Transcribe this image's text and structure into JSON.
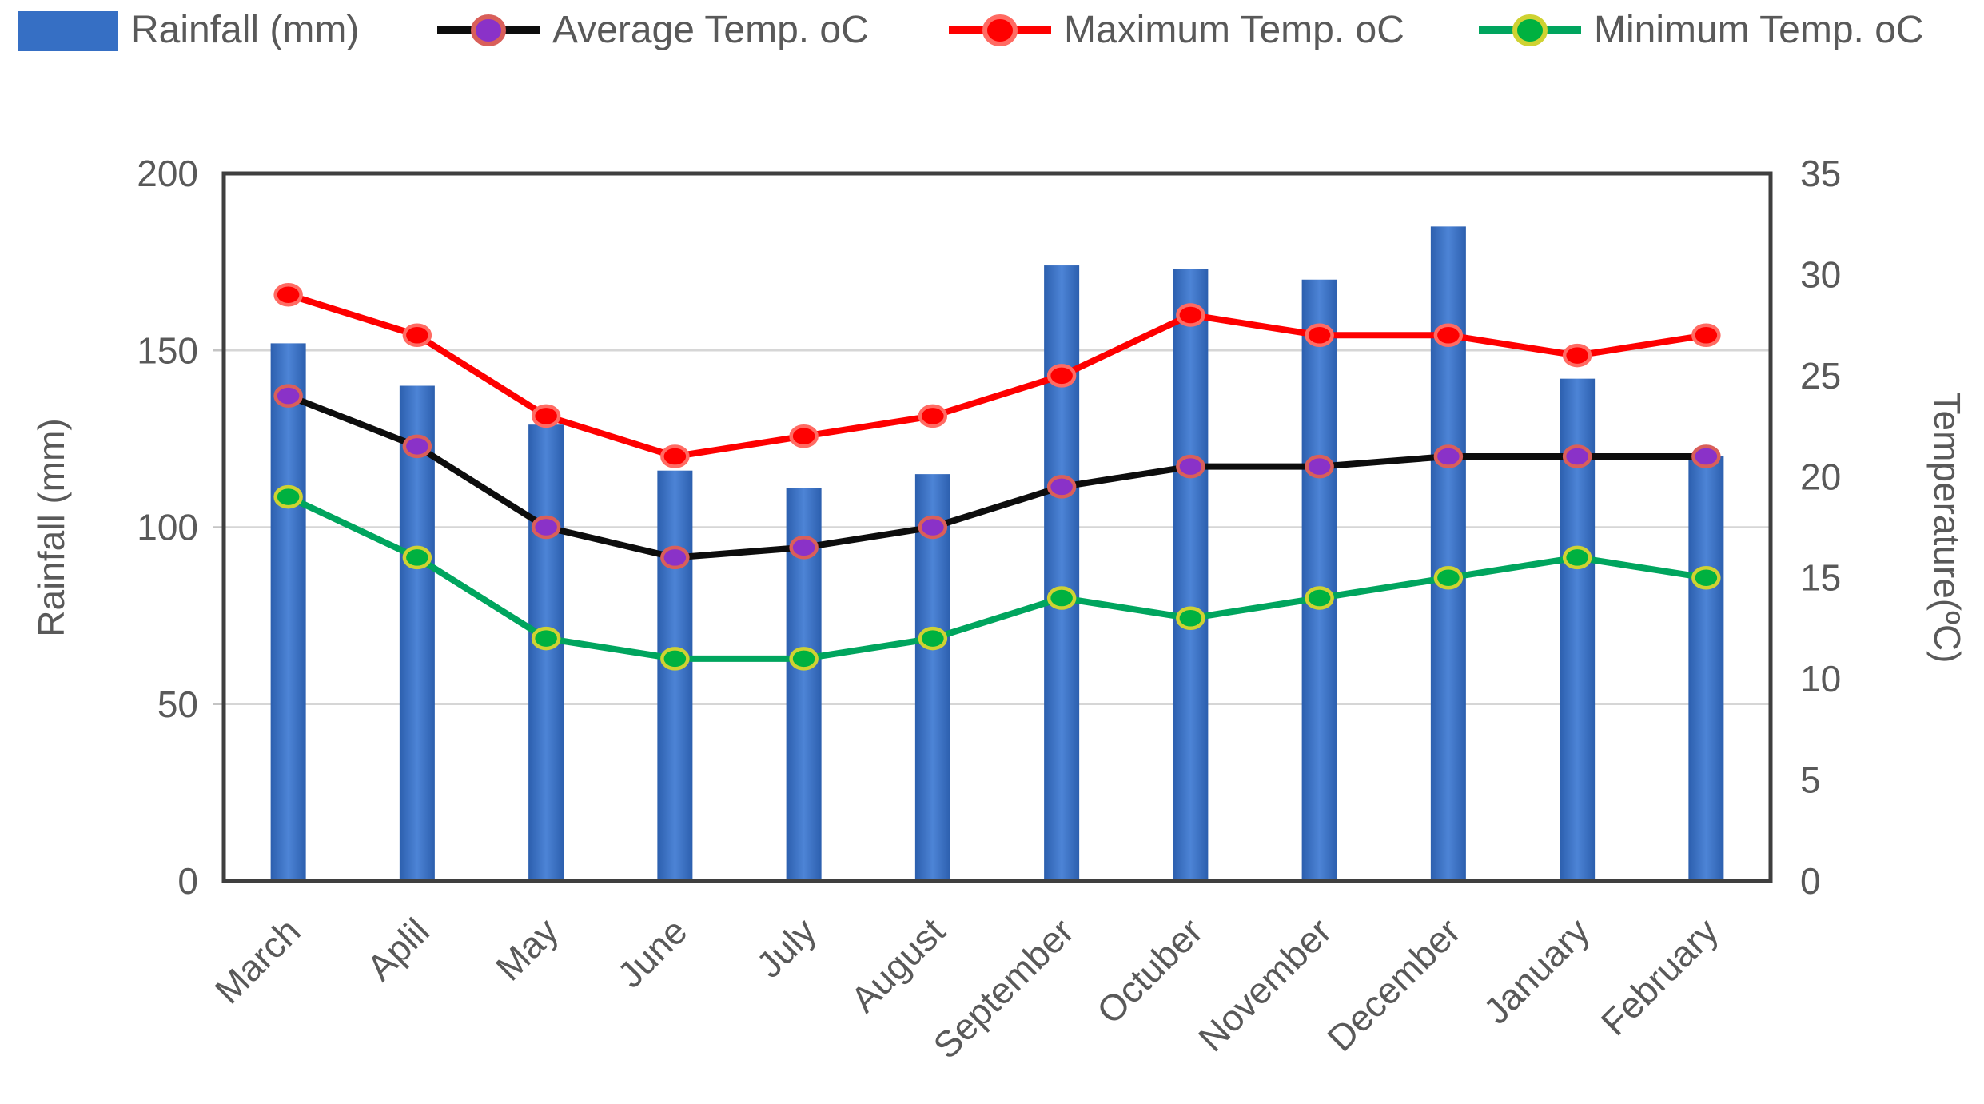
{
  "chart_data": {
    "type": "bar+line combo (clustered column on left axis, 3 lines on right axis)",
    "categories": [
      "March",
      "Aplil",
      "May",
      "June",
      "July",
      "August",
      "September",
      "Octuber",
      "November",
      "December",
      "January",
      "February"
    ],
    "series": [
      {
        "name": "Rainfall (mm)",
        "type": "bar",
        "axis": "left",
        "color": "#366fc4",
        "values": [
          152,
          140,
          129,
          116,
          111,
          115,
          174,
          173,
          170,
          185,
          142,
          120
        ]
      },
      {
        "name": "Average Temp. oC",
        "type": "line",
        "axis": "right",
        "color": "#0d0d0d",
        "marker_fill": "#8a32c8",
        "marker_stroke": "#d95f5a",
        "values": [
          24,
          21.5,
          17.5,
          16,
          16.5,
          17.5,
          19.5,
          20.5,
          20.5,
          21,
          21,
          21
        ]
      },
      {
        "name": "Maximum Temp. oC",
        "type": "line",
        "axis": "right",
        "color": "#fe0000",
        "marker_fill": "#fe0000",
        "marker_stroke": "#ff6b63",
        "values": [
          29,
          27,
          23,
          21,
          22,
          23,
          25,
          28,
          27,
          27,
          26,
          27
        ]
      },
      {
        "name": "Minimum Temp. oC",
        "type": "line",
        "axis": "right",
        "color": "#00a55e",
        "marker_fill": "#00b140",
        "marker_stroke": "#cfd232",
        "values": [
          19,
          16,
          12,
          11,
          11,
          12,
          14,
          13,
          14,
          15,
          16,
          15
        ]
      }
    ],
    "axes": {
      "left": {
        "title": "Rainfall (mm)",
        "ticks": [
          "200",
          "150",
          "100",
          "50",
          "0"
        ],
        "min": 0,
        "max": 200
      },
      "right": {
        "title": "Temperature(ºC)",
        "ticks": [
          "35",
          "30",
          "25",
          "20",
          "15",
          "10",
          "5",
          "0"
        ],
        "min": 0,
        "max": 35
      }
    },
    "grid": true,
    "legend_position": "top",
    "title": ""
  },
  "style_colors": {
    "text": "#595959",
    "gridline": "#d6d6d6",
    "plot_border": "#3f3f3f",
    "background": "#ffffff",
    "bar_gradient": [
      "#2c5fae",
      "#4d84d6",
      "#2c5fae"
    ]
  }
}
